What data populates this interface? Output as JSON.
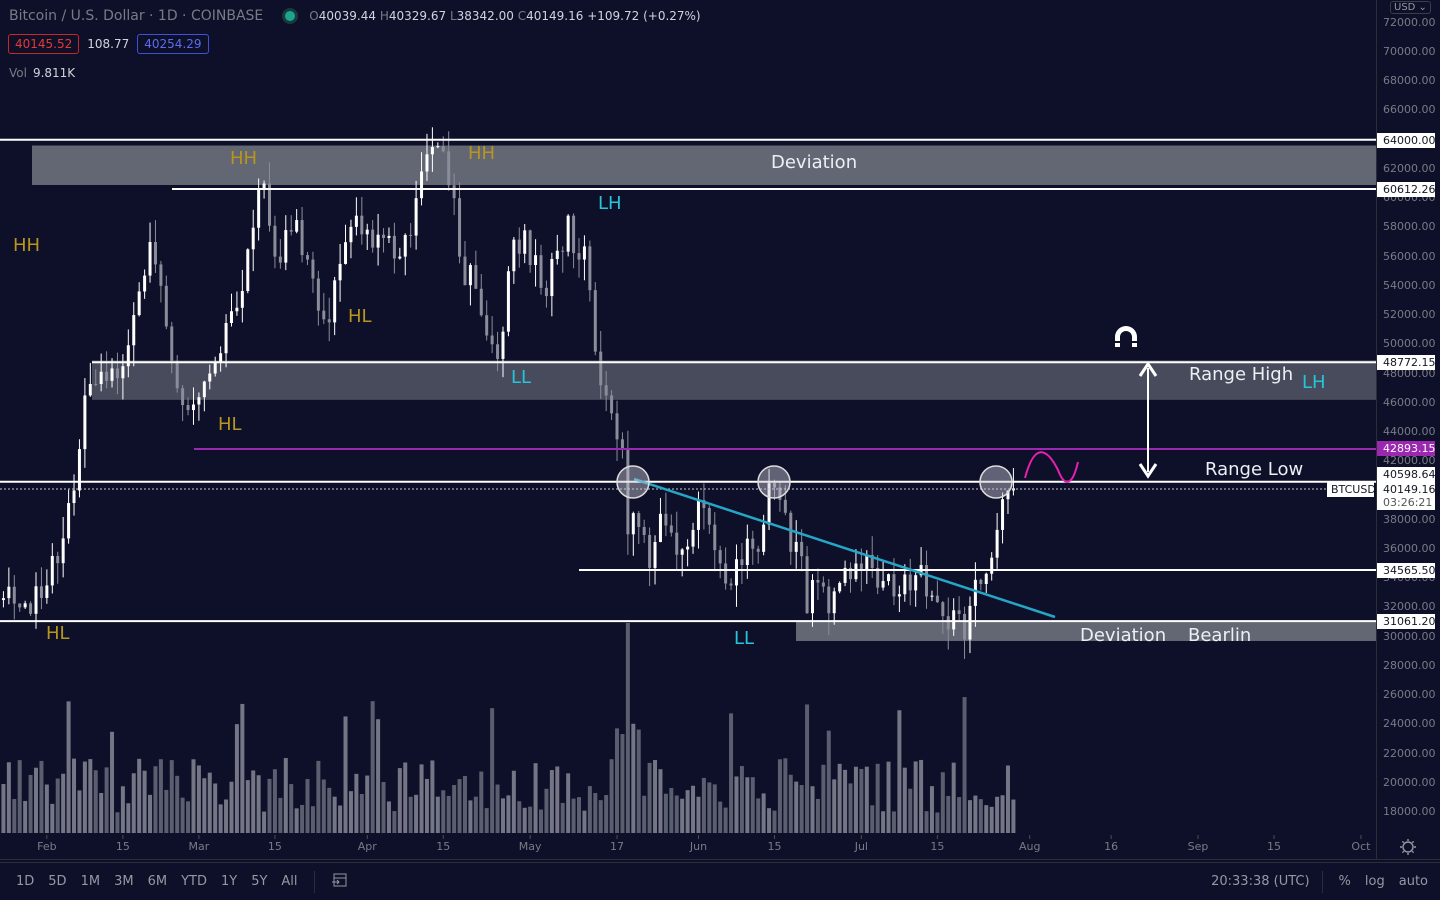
{
  "header": {
    "title": "Bitcoin / U.S. Dollar · 1D · COINBASE",
    "open_key": "O",
    "open": "40039.44",
    "high_key": "H",
    "high": "40329.67",
    "low_key": "L",
    "low": "38342.00",
    "close_key": "C",
    "close": "40149.16",
    "change": "+109.72 (+0.27%)",
    "status_color": "#1fa38f"
  },
  "quote": {
    "bid": "40145.52",
    "spread": "108.77",
    "ask": "40254.29"
  },
  "volume": {
    "label": "Vol",
    "value": "9.811K"
  },
  "currency_button": "USD ⌄",
  "annotations": {
    "hh1": "HH",
    "hh2": "HH",
    "hh3": "HH",
    "hl1": "HL",
    "hl2": "HL",
    "hl3": "HL",
    "lh1": "LH",
    "lh2": "LH",
    "ll1": "LL",
    "ll2": "LL",
    "deviation_top": "Deviation",
    "range_high": "Range High",
    "range_low": "Range Low",
    "deviation_bottom": "Deviation",
    "bearlin": "Bearlin"
  },
  "colors": {
    "up": "#ffffff",
    "down": "#8a8d99",
    "gold": "#b8961e",
    "cyan": "#26c6da",
    "purple": "#9c27b0",
    "magenta": "#e91eb0",
    "background": "#0e1029"
  },
  "price_labels": [
    {
      "value": "64000.00",
      "style": "white"
    },
    {
      "value": "60612.26",
      "style": "white"
    },
    {
      "value": "48772.15",
      "style": "white"
    },
    {
      "value": "42893.15",
      "style": "purple"
    },
    {
      "value": "40598.64",
      "style": "white"
    },
    {
      "value": "34565.50",
      "style": "white"
    },
    {
      "value": "31061.20",
      "style": "white"
    }
  ],
  "last_price": {
    "symbol": "BTCUSD",
    "value": "40149.16",
    "countdown": "03:26:21"
  },
  "bottom_toolbar": {
    "ranges": [
      "1D",
      "5D",
      "1M",
      "3M",
      "6M",
      "YTD",
      "1Y",
      "5Y",
      "All"
    ],
    "time": "20:33:38 (UTC)",
    "percent": "%",
    "log": "log",
    "auto": "auto"
  },
  "chart_data": {
    "type": "candlestick",
    "title": "Bitcoin / U.S. Dollar · 1D · COINBASE",
    "ylim": [
      17000,
      72000
    ],
    "y_ticks": [
      "72000.00",
      "70000.00",
      "68000.00",
      "66000.00",
      "64000.00",
      "62000.00",
      "60000.00",
      "58000.00",
      "56000.00",
      "54000.00",
      "52000.00",
      "50000.00",
      "48000.00",
      "46000.00",
      "44000.00",
      "42000.00",
      "40000.00",
      "38000.00",
      "36000.00",
      "34000.00",
      "32000.00",
      "30000.00",
      "28000.00",
      "26000.00",
      "24000.00",
      "22000.00",
      "20000.00",
      "18000.00"
    ],
    "x_ticks": [
      {
        "label": "Feb",
        "date": "2021-02-01"
      },
      {
        "label": "15",
        "date": "2021-02-15"
      },
      {
        "label": "Mar",
        "date": "2021-03-01"
      },
      {
        "label": "15",
        "date": "2021-03-15"
      },
      {
        "label": "Apr",
        "date": "2021-04-01"
      },
      {
        "label": "15",
        "date": "2021-04-15"
      },
      {
        "label": "May",
        "date": "2021-05-01"
      },
      {
        "label": "17",
        "date": "2021-05-17"
      },
      {
        "label": "Jun",
        "date": "2021-06-01"
      },
      {
        "label": "15",
        "date": "2021-06-15"
      },
      {
        "label": "Jul",
        "date": "2021-07-01"
      },
      {
        "label": "15",
        "date": "2021-07-15"
      },
      {
        "label": "Aug",
        "date": "2021-08-01"
      },
      {
        "label": "16",
        "date": "2021-08-16"
      },
      {
        "label": "Sep",
        "date": "2021-09-01"
      },
      {
        "label": "15",
        "date": "2021-09-15"
      },
      {
        "label": "Oct",
        "date": "2021-10-01"
      }
    ],
    "closes": [
      [
        "2021-01-23",
        32500
      ],
      [
        "2021-01-27",
        32000
      ],
      [
        "2021-02-01",
        33500
      ],
      [
        "2021-02-06",
        40000
      ],
      [
        "2021-02-08",
        46500
      ],
      [
        "2021-02-12",
        47500
      ],
      [
        "2021-02-15",
        48500
      ],
      [
        "2021-02-17",
        52000
      ],
      [
        "2021-02-20",
        57000
      ],
      [
        "2021-02-22",
        54000
      ],
      [
        "2021-02-25",
        47000
      ],
      [
        "2021-02-27",
        45500
      ],
      [
        "2021-03-03",
        48000
      ],
      [
        "2021-03-08",
        52500
      ],
      [
        "2021-03-10",
        56500
      ],
      [
        "2021-03-13",
        61000
      ],
      [
        "2021-03-15",
        56000
      ],
      [
        "2021-03-19",
        58500
      ],
      [
        "2021-03-22",
        54500
      ],
      [
        "2021-03-25",
        51500
      ],
      [
        "2021-03-27",
        55500
      ],
      [
        "2021-03-30",
        58800
      ],
      [
        "2021-04-03",
        57500
      ],
      [
        "2021-04-07",
        56000
      ],
      [
        "2021-04-10",
        60000
      ],
      [
        "2021-04-13",
        63500
      ],
      [
        "2021-04-15",
        63200
      ],
      [
        "2021-04-17",
        60000
      ],
      [
        "2021-04-18",
        56000
      ],
      [
        "2021-04-21",
        53800
      ],
      [
        "2021-04-24",
        50000
      ],
      [
        "2021-04-25",
        49000
      ],
      [
        "2021-04-27",
        55000
      ],
      [
        "2021-04-30",
        57800
      ],
      [
        "2021-05-04",
        53300
      ],
      [
        "2021-05-06",
        56400
      ],
      [
        "2021-05-08",
        58800
      ],
      [
        "2021-05-10",
        55800
      ],
      [
        "2021-05-11",
        56700
      ],
      [
        "2021-05-13",
        49500
      ],
      [
        "2021-05-15",
        46500
      ],
      [
        "2021-05-17",
        43500
      ],
      [
        "2021-05-18",
        42800
      ],
      [
        "2021-05-19",
        37000
      ],
      [
        "2021-05-21",
        37500
      ],
      [
        "2021-05-23",
        34700
      ],
      [
        "2021-05-25",
        38400
      ],
      [
        "2021-05-28",
        35600
      ],
      [
        "2021-05-31",
        37300
      ],
      [
        "2021-06-02",
        38800
      ],
      [
        "2021-06-07",
        33500
      ],
      [
        "2021-06-10",
        36700
      ],
      [
        "2021-06-12",
        35800
      ],
      [
        "2021-06-14",
        40500
      ],
      [
        "2021-06-15",
        40200
      ],
      [
        "2021-06-18",
        35800
      ],
      [
        "2021-06-20",
        35500
      ],
      [
        "2021-06-21",
        31600
      ],
      [
        "2021-06-23",
        33700
      ],
      [
        "2021-06-25",
        31600
      ],
      [
        "2021-06-28",
        34700
      ],
      [
        "2021-06-30",
        35000
      ],
      [
        "2021-07-03",
        34700
      ],
      [
        "2021-07-05",
        33800
      ],
      [
        "2021-07-08",
        32900
      ],
      [
        "2021-07-11",
        34200
      ],
      [
        "2021-07-14",
        32800
      ],
      [
        "2021-07-16",
        31400
      ],
      [
        "2021-07-18",
        31800
      ],
      [
        "2021-07-20",
        29800
      ],
      [
        "2021-07-21",
        32100
      ],
      [
        "2021-07-23",
        33600
      ],
      [
        "2021-07-24",
        34300
      ],
      [
        "2021-07-25",
        35400
      ],
      [
        "2021-07-26",
        37300
      ],
      [
        "2021-07-27",
        39400
      ],
      [
        "2021-07-28",
        40000
      ],
      [
        "2021-07-29",
        40149.16
      ]
    ],
    "horizontal_levels": [
      64000,
      60612.26,
      48772.15,
      42893.15,
      40598.64,
      34565.5,
      31061.2
    ],
    "zones": [
      {
        "label": "Deviation",
        "from": 60900,
        "to": 63600
      },
      {
        "label": "Range High",
        "from": 46200,
        "to": 48900
      },
      {
        "label": "Deviation",
        "from": 29700,
        "to": 31060
      }
    ],
    "volume_spike_date": "2021-05-19",
    "grid": false,
    "log_scale": false
  }
}
